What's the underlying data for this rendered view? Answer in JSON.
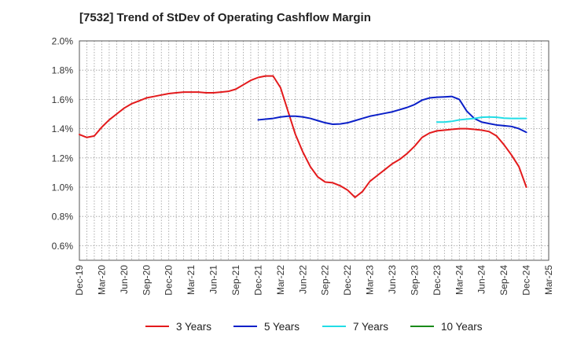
{
  "chart_data": {
    "type": "line",
    "title": "[7532]  Trend of StDev of Operating Cashflow Margin",
    "xlabel": "",
    "ylabel": "",
    "ylim": [
      0.5,
      2.0
    ],
    "y_ticks": [
      "0.6%",
      "0.8%",
      "1.0%",
      "1.2%",
      "1.4%",
      "1.6%",
      "1.8%",
      "2.0%"
    ],
    "y_tick_values": [
      0.6,
      0.8,
      1.0,
      1.2,
      1.4,
      1.6,
      1.8,
      2.0
    ],
    "x_ticks": [
      "Dec-19",
      "Mar-20",
      "Jun-20",
      "Sep-20",
      "Dec-20",
      "Mar-21",
      "Jun-21",
      "Sep-21",
      "Dec-21",
      "Mar-22",
      "Jun-22",
      "Sep-22",
      "Dec-22",
      "Mar-23",
      "Jun-23",
      "Sep-23",
      "Dec-23",
      "Mar-24",
      "Jun-24",
      "Sep-24",
      "Dec-24",
      "Mar-25"
    ],
    "grid": true,
    "legend_position": "bottom",
    "series": [
      {
        "name": "3 Years",
        "color": "#e31a1c",
        "points": [
          [
            "Dec-19",
            1.36
          ],
          [
            "Jan-20",
            1.34
          ],
          [
            "Feb-20",
            1.35
          ],
          [
            "Mar-20",
            1.41
          ],
          [
            "Apr-20",
            1.46
          ],
          [
            "May-20",
            1.5
          ],
          [
            "Jun-20",
            1.54
          ],
          [
            "Jul-20",
            1.57
          ],
          [
            "Aug-20",
            1.59
          ],
          [
            "Sep-20",
            1.61
          ],
          [
            "Oct-20",
            1.62
          ],
          [
            "Nov-20",
            1.63
          ],
          [
            "Dec-20",
            1.64
          ],
          [
            "Jan-21",
            1.645
          ],
          [
            "Feb-21",
            1.65
          ],
          [
            "Mar-21",
            1.65
          ],
          [
            "Apr-21",
            1.65
          ],
          [
            "May-21",
            1.645
          ],
          [
            "Jun-21",
            1.645
          ],
          [
            "Jul-21",
            1.65
          ],
          [
            "Aug-21",
            1.655
          ],
          [
            "Sep-21",
            1.67
          ],
          [
            "Oct-21",
            1.7
          ],
          [
            "Nov-21",
            1.73
          ],
          [
            "Dec-21",
            1.75
          ],
          [
            "Jan-22",
            1.76
          ],
          [
            "Feb-22",
            1.76
          ],
          [
            "Mar-22",
            1.68
          ],
          [
            "Apr-22",
            1.52
          ],
          [
            "May-22",
            1.36
          ],
          [
            "Jun-22",
            1.24
          ],
          [
            "Jul-22",
            1.14
          ],
          [
            "Aug-22",
            1.07
          ],
          [
            "Sep-22",
            1.035
          ],
          [
            "Oct-22",
            1.03
          ],
          [
            "Nov-22",
            1.01
          ],
          [
            "Dec-22",
            0.98
          ],
          [
            "Jan-23",
            0.93
          ],
          [
            "Feb-23",
            0.97
          ],
          [
            "Mar-23",
            1.04
          ],
          [
            "Apr-23",
            1.08
          ],
          [
            "May-23",
            1.12
          ],
          [
            "Jun-23",
            1.16
          ],
          [
            "Jul-23",
            1.19
          ],
          [
            "Aug-23",
            1.23
          ],
          [
            "Sep-23",
            1.28
          ],
          [
            "Oct-23",
            1.34
          ],
          [
            "Nov-23",
            1.37
          ],
          [
            "Dec-23",
            1.385
          ],
          [
            "Jan-24",
            1.39
          ],
          [
            "Feb-24",
            1.395
          ],
          [
            "Mar-24",
            1.4
          ],
          [
            "Apr-24",
            1.4
          ],
          [
            "May-24",
            1.395
          ],
          [
            "Jun-24",
            1.39
          ],
          [
            "Jul-24",
            1.38
          ],
          [
            "Aug-24",
            1.35
          ],
          [
            "Sep-24",
            1.29
          ],
          [
            "Oct-24",
            1.22
          ],
          [
            "Nov-24",
            1.14
          ],
          [
            "Dec-24",
            1.0
          ]
        ]
      },
      {
        "name": "5 Years",
        "color": "#0a1fc8",
        "points": [
          [
            "Dec-21",
            1.46
          ],
          [
            "Jan-22",
            1.465
          ],
          [
            "Feb-22",
            1.47
          ],
          [
            "Mar-22",
            1.48
          ],
          [
            "Apr-22",
            1.485
          ],
          [
            "May-22",
            1.485
          ],
          [
            "Jun-22",
            1.48
          ],
          [
            "Jul-22",
            1.47
          ],
          [
            "Aug-22",
            1.455
          ],
          [
            "Sep-22",
            1.44
          ],
          [
            "Oct-22",
            1.43
          ],
          [
            "Nov-22",
            1.432
          ],
          [
            "Dec-22",
            1.44
          ],
          [
            "Jan-23",
            1.455
          ],
          [
            "Feb-23",
            1.47
          ],
          [
            "Mar-23",
            1.485
          ],
          [
            "Apr-23",
            1.495
          ],
          [
            "May-23",
            1.505
          ],
          [
            "Jun-23",
            1.515
          ],
          [
            "Jul-23",
            1.53
          ],
          [
            "Aug-23",
            1.545
          ],
          [
            "Sep-23",
            1.565
          ],
          [
            "Oct-23",
            1.595
          ],
          [
            "Nov-23",
            1.61
          ],
          [
            "Dec-23",
            1.615
          ],
          [
            "Jan-24",
            1.617
          ],
          [
            "Feb-24",
            1.62
          ],
          [
            "Mar-24",
            1.6
          ],
          [
            "Apr-24",
            1.52
          ],
          [
            "May-24",
            1.47
          ],
          [
            "Jun-24",
            1.445
          ],
          [
            "Jul-24",
            1.435
          ],
          [
            "Aug-24",
            1.425
          ],
          [
            "Sep-24",
            1.42
          ],
          [
            "Oct-24",
            1.415
          ],
          [
            "Nov-24",
            1.4
          ],
          [
            "Dec-24",
            1.375
          ]
        ]
      },
      {
        "name": "7 Years",
        "color": "#22dde6",
        "points": [
          [
            "Dec-23",
            1.445
          ],
          [
            "Jan-24",
            1.445
          ],
          [
            "Feb-24",
            1.45
          ],
          [
            "Mar-24",
            1.46
          ],
          [
            "Apr-24",
            1.465
          ],
          [
            "May-24",
            1.47
          ],
          [
            "Jun-24",
            1.478
          ],
          [
            "Jul-24",
            1.48
          ],
          [
            "Aug-24",
            1.478
          ],
          [
            "Sep-24",
            1.472
          ],
          [
            "Oct-24",
            1.47
          ],
          [
            "Nov-24",
            1.47
          ],
          [
            "Dec-24",
            1.47
          ]
        ]
      },
      {
        "name": "10 Years",
        "color": "#1a8a1a",
        "points": []
      }
    ]
  }
}
